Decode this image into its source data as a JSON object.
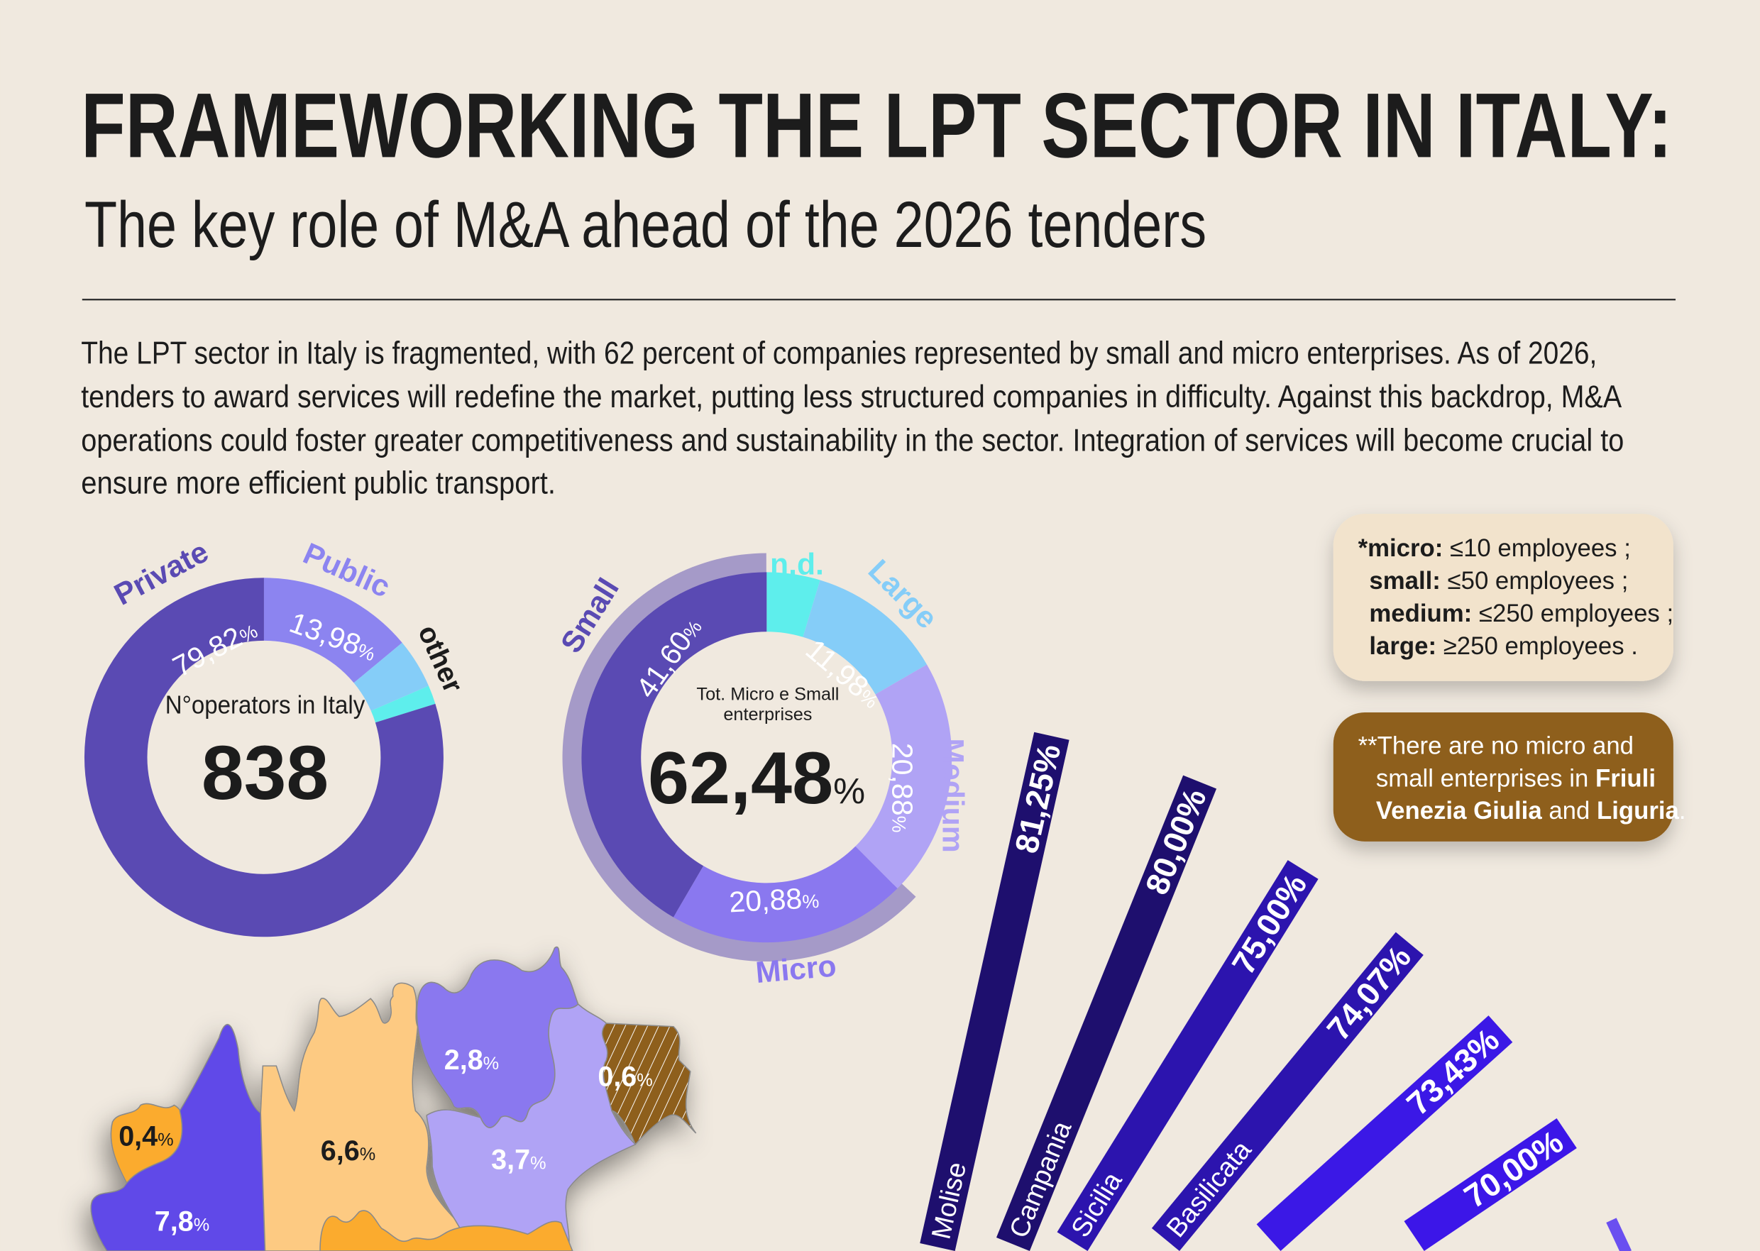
{
  "header": {
    "title": "FRAMEWORKING THE LPT SECTOR IN ITALY:",
    "subtitle": "The key role of M&A ahead of the 2026 tenders"
  },
  "intro": {
    "lines": [
      "The LPT sector in Italy is fragmented, with 62 percent of companies represented by small and micro enterprises. As of 2026,",
      "tenders to award services will redefine the market, putting less structured companies in difficulty. Against this backdrop, M&A",
      "operations could foster greater competitiveness and sustainability in the sector. Integration of services will become crucial to",
      "ensure more efficient public transport."
    ]
  },
  "colors": {
    "background": "#f0e9df",
    "dark_purple": "#5a4ab3",
    "mid_purple": "#8a78ef",
    "light_purple": "#b0a3f5",
    "light_blue": "#85cdf8",
    "cyan": "#5eeeec",
    "brown": "#8e5f1f",
    "legend_bg": "#f2e3cc"
  },
  "legend": {
    "lines": [
      {
        "bold": "*micro:",
        "text": " ≤10 employees ;"
      },
      {
        "bold": "small:",
        "text": " ≤50 employees ;"
      },
      {
        "bold": "medium:",
        "text": " ≤250 employees ;"
      },
      {
        "bold": "large:",
        "text": " ≥250 employees ."
      }
    ]
  },
  "note": {
    "line1": "**There are no micro and",
    "line2_text": "small enterprises in ",
    "line2_bold": "Friuli",
    "line3_bold1": "Venezia Giulia",
    "line3_text": " and ",
    "line3_bold2": "Liguria",
    "line3_end": "."
  },
  "chart_data": [
    {
      "type": "pie",
      "center_label": "N°operators in Italy",
      "center_value": "838",
      "slices": [
        {
          "name": "Public",
          "value": 13.98,
          "label": "13,98",
          "color": "#8c84f0"
        },
        {
          "name": "other",
          "value": 4.5,
          "label": "",
          "color": "#85cdf8"
        },
        {
          "name": "",
          "value": 1.7,
          "label": "",
          "color": "#5eeeec"
        },
        {
          "name": "Private",
          "value": 79.82,
          "label": "79,82",
          "color": "#5a4ab3"
        }
      ]
    },
    {
      "type": "pie",
      "center_label_1": "Tot. Micro e Small",
      "center_label_2": "enterprises",
      "center_value": "62,48",
      "unit": "%",
      "slices": [
        {
          "name": "n.d.",
          "value": 4.66,
          "label": "",
          "color": "#5eeeec"
        },
        {
          "name": "Large",
          "value": 11.98,
          "label": "11,98",
          "color": "#85cdf8"
        },
        {
          "name": "Medium",
          "value": 20.88,
          "label": "20,88",
          "color": "#b0a3f5"
        },
        {
          "name": "Micro",
          "value": 20.88,
          "label": "20,88",
          "color": "#8a78ef"
        },
        {
          "name": "Small",
          "value": 41.6,
          "label": "41,60",
          "color": "#5a4ab3"
        }
      ],
      "highlight_band": [
        "Micro",
        "Small"
      ]
    },
    {
      "type": "bar",
      "orientation": "radial",
      "categories": [
        "Molise",
        "Campania",
        "Sicilia",
        "Basilicata",
        "",
        "",
        ""
      ],
      "values": [
        81.25,
        80.0,
        75.0,
        74.07,
        73.43,
        70.0,
        null
      ],
      "labels": [
        "81,25%",
        "80,00%",
        "75,00%",
        "74,07%",
        "73,43%",
        "70,00%",
        ""
      ],
      "colors": [
        "#1e0f6e",
        "#1e0f6e",
        "#2c14ae",
        "#2c14ae",
        "#3b18e6",
        "#3c16e8",
        "#6a4ff0"
      ]
    },
    {
      "type": "map",
      "regions": [
        {
          "value": "0,4",
          "color": "#fbab2f",
          "text_color": "#1c1c1c"
        },
        {
          "value": "7,8",
          "color": "#6148e8",
          "text_color": "#ffffff"
        },
        {
          "value": "6,6",
          "color": "#fdca82",
          "text_color": "#1c1c1c"
        },
        {
          "value": "2,8",
          "color": "#8a78ef",
          "text_color": "#ffffff"
        },
        {
          "value": "3,7",
          "color": "#b0a3f5",
          "text_color": "#ffffff"
        },
        {
          "value": "0,6",
          "color": "#8e5f1f",
          "text_color": "#ffffff",
          "hatched": true
        },
        {
          "value": "",
          "color": "#fbab2f",
          "text_color": "#1c1c1c"
        }
      ],
      "unit": "%"
    }
  ]
}
